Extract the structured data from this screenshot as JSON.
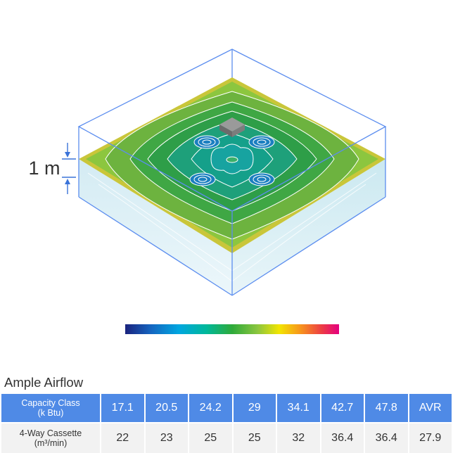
{
  "dimension_label": "1 m",
  "colorbar": {
    "stops": [
      "#1a237e",
      "#1565c0",
      "#00a6e0",
      "#00b89a",
      "#2eaa3a",
      "#8cc63f",
      "#f2e500",
      "#f7941d",
      "#ec3c45",
      "#e4007f"
    ]
  },
  "colors": {
    "room_outline": "#5b8def",
    "floor_edge_yellow": "#c9c63a",
    "floor_outer_green": "#6db33f",
    "floor_mid_green": "#2e9e48",
    "floor_center_teal": "#15a08a",
    "contour_line": "#ffffff",
    "table_header_bg": "#4f8ae6",
    "table_value_bg": "#f2f2f2"
  },
  "section_title": "Ample Airflow",
  "table": {
    "header_label_line1": "Capacity Class",
    "header_label_line2": "(k Btu)",
    "row_label_line1": "4-Way Cassette",
    "row_label_line2": "(m³/min)",
    "columns": [
      {
        "capacity": "17.1",
        "value": "22"
      },
      {
        "capacity": "20.5",
        "value": "23"
      },
      {
        "capacity": "24.2",
        "value": "25"
      },
      {
        "capacity": "29",
        "value": "25"
      },
      {
        "capacity": "34.1",
        "value": "32"
      },
      {
        "capacity": "42.7",
        "value": "36.4"
      },
      {
        "capacity": "47.8",
        "value": "36.4"
      },
      {
        "capacity": "AVR",
        "value": "27.9"
      }
    ]
  }
}
